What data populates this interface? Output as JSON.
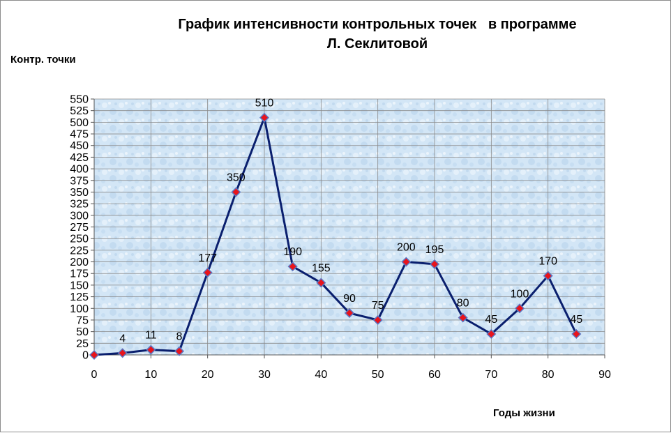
{
  "chart_data": {
    "type": "line",
    "title": [
      "График интенсивности контрольных точек   в программе",
      "Л. Секлитовой"
    ],
    "ylabel": "Контр. точки",
    "xlabel": "Годы жизни",
    "x": [
      0,
      5,
      10,
      15,
      20,
      25,
      30,
      35,
      40,
      45,
      50,
      55,
      60,
      65,
      70,
      75,
      80,
      85
    ],
    "series": [
      {
        "values": [
          0,
          4,
          11,
          8,
          177,
          350,
          510,
          190,
          155,
          90,
          75,
          200,
          195,
          80,
          45,
          100,
          170,
          45
        ],
        "data_labels": [
          "",
          "4",
          "11",
          "8",
          "177",
          "350",
          "510",
          "190",
          "155",
          "90",
          "75",
          "200",
          "195",
          "80",
          "45",
          "100",
          "170",
          "45"
        ]
      }
    ],
    "xlim": [
      0,
      90
    ],
    "ylim": [
      0,
      550
    ],
    "xticks": [
      "0",
      "10",
      "20",
      "30",
      "40",
      "50",
      "60",
      "70",
      "80",
      "90"
    ],
    "yticks": [
      "0",
      "25",
      "50",
      "75",
      "100",
      "125",
      "150",
      "175",
      "200",
      "225",
      "250",
      "275",
      "300",
      "325",
      "350",
      "375",
      "400",
      "425",
      "450",
      "475",
      "500",
      "525",
      "550"
    ],
    "grid": true,
    "legend": "none",
    "colors": {
      "line": "#0a1f6e",
      "marker_fill": "#e8141c",
      "marker_edge": "#5b78c4",
      "plot_bg": "#cfe3f5",
      "grid": "#8a8a8a"
    }
  }
}
